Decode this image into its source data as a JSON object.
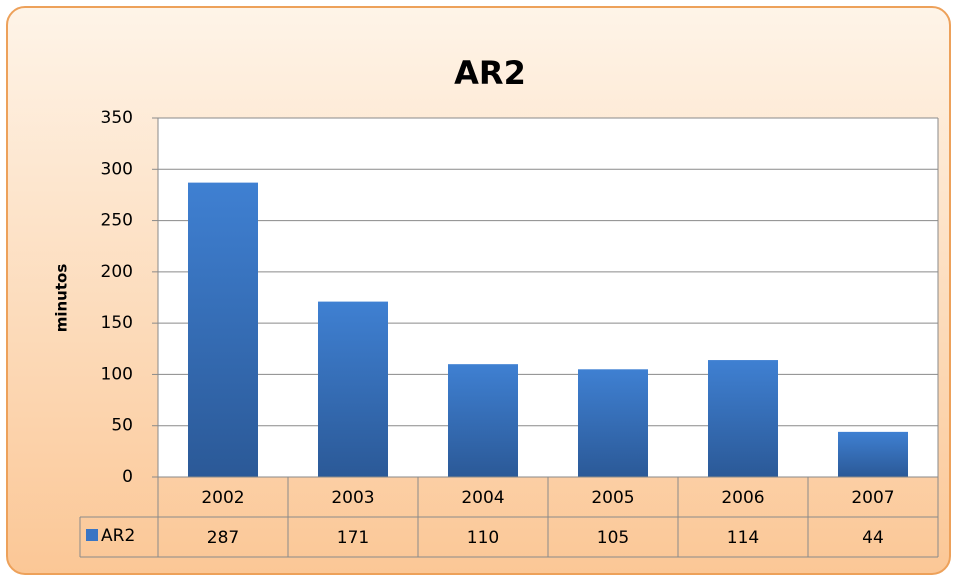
{
  "chart_data": {
    "type": "bar",
    "title": "AR2",
    "y_label": "minutos",
    "categories": [
      "2002",
      "2003",
      "2004",
      "2005",
      "2006",
      "2007"
    ],
    "series": [
      {
        "name": "AR2",
        "color": "#3a75c4",
        "values": [
          287,
          171,
          110,
          105,
          114,
          44
        ]
      }
    ],
    "ylim": [
      0,
      350
    ],
    "yticks": [
      0,
      50,
      100,
      150,
      200,
      250,
      300,
      350
    ],
    "grid": true,
    "data_table": true
  }
}
